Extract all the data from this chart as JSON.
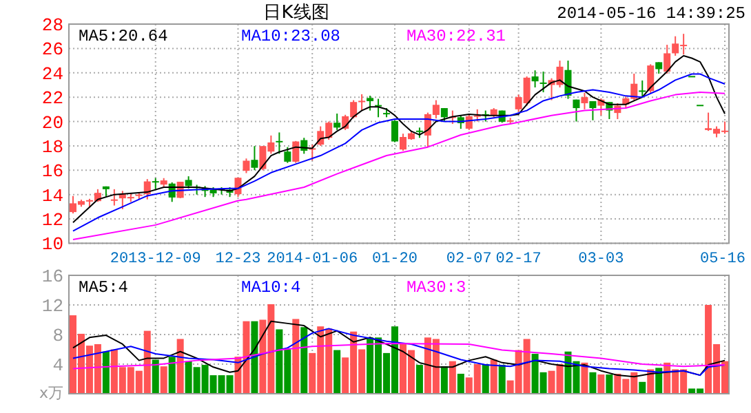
{
  "chart_data": [
    {
      "type": "candlestick",
      "title": "日K线图",
      "subtitle": "2014-05-16 14:39:25",
      "categories": [
        null,
        null,
        null,
        null,
        null,
        null,
        null,
        null,
        null,
        null,
        "2013-12-09",
        null,
        null,
        null,
        null,
        null,
        null,
        null,
        null,
        null,
        "12-23",
        null,
        null,
        null,
        null,
        null,
        null,
        null,
        null,
        "2014-01-06",
        null,
        null,
        null,
        null,
        null,
        null,
        null,
        null,
        null,
        "01-20",
        null,
        null,
        null,
        null,
        null,
        null,
        null,
        null,
        "02-07",
        null,
        null,
        null,
        null,
        null,
        "02-17",
        null,
        null,
        null,
        null,
        null,
        null,
        null,
        null,
        null,
        "03-03",
        null,
        null,
        null,
        null,
        null,
        null,
        null,
        null,
        null,
        null,
        null,
        null,
        null,
        null,
        "05-16"
      ],
      "ohlc": [
        [
          12.56,
          13.88,
          12.45,
          13.28
        ],
        [
          13.16,
          13.58,
          13.0,
          13.46
        ],
        [
          13.46,
          13.65,
          13.0,
          13.54
        ],
        [
          13.46,
          14.44,
          13.4,
          14.14
        ],
        [
          14.67,
          14.67,
          13.84,
          14.44
        ],
        [
          13.5,
          14.44,
          13.1,
          13.6
        ],
        [
          13.69,
          14.3,
          12.8,
          14.03
        ],
        [
          13.7,
          14.1,
          13.4,
          13.8
        ],
        [
          13.9,
          14.2,
          13.6,
          14.0
        ],
        [
          14.03,
          15.27,
          13.6,
          15.08
        ],
        [
          15.1,
          15.35,
          14.44,
          15.0
        ],
        [
          14.82,
          15.35,
          14.6,
          15.16
        ],
        [
          14.9,
          15.0,
          13.4,
          13.76
        ],
        [
          13.73,
          15.05,
          13.7,
          15.05
        ],
        [
          15.2,
          15.5,
          14.5,
          14.7
        ],
        [
          14.65,
          14.8,
          14.0,
          14.55
        ],
        [
          14.5,
          14.7,
          13.8,
          14.3
        ],
        [
          14.4,
          14.6,
          13.8,
          14.1
        ],
        [
          14.5,
          14.6,
          14.0,
          14.4
        ],
        [
          14.4,
          14.6,
          13.8,
          14.15
        ],
        [
          14.03,
          15.4,
          13.8,
          15.38
        ],
        [
          15.95,
          16.96,
          15.76,
          16.78
        ],
        [
          16.85,
          17.98,
          16.0,
          16.2
        ],
        [
          16.1,
          17.98,
          16.0,
          17.98
        ],
        [
          17.53,
          18.85,
          17.35,
          18.28
        ],
        [
          18.4,
          19.1,
          17.35,
          18.3
        ],
        [
          17.53,
          17.9,
          16.6,
          16.7
        ],
        [
          16.7,
          18.4,
          16.6,
          18.36
        ],
        [
          18.47,
          18.66,
          17.35,
          17.6
        ],
        [
          17.7,
          18.1,
          16.8,
          17.8
        ],
        [
          18.1,
          19.6,
          18.0,
          19.22
        ],
        [
          18.66,
          20.0,
          18.5,
          19.9
        ],
        [
          19.9,
          20.65,
          19.3,
          19.5
        ],
        [
          19.41,
          20.55,
          19.3,
          20.43
        ],
        [
          20.35,
          21.75,
          20.25,
          21.6
        ],
        [
          21.6,
          22.24,
          20.9,
          21.7
        ],
        [
          21.93,
          22.12,
          20.9,
          21.67
        ],
        [
          21.35,
          21.86,
          20.35,
          21.3
        ],
        [
          20.7,
          21.1,
          20.35,
          20.6
        ],
        [
          20.05,
          20.1,
          18.3,
          18.36
        ],
        [
          17.7,
          19.0,
          17.6,
          18.73
        ],
        [
          18.55,
          19.2,
          18.5,
          19.03
        ],
        [
          19.25,
          19.5,
          18.66,
          19.2
        ],
        [
          18.85,
          20.73,
          17.9,
          20.6
        ],
        [
          20.54,
          21.75,
          20.25,
          21.37
        ],
        [
          21.1,
          21.1,
          19.98,
          20.35
        ],
        [
          20.3,
          20.9,
          19.8,
          20.4
        ],
        [
          20.35,
          20.5,
          19.4,
          19.86
        ],
        [
          19.41,
          20.55,
          19.3,
          20.43
        ],
        [
          20.4,
          21.0,
          20.0,
          20.5
        ],
        [
          20.6,
          20.9,
          20.0,
          20.5
        ],
        [
          20.54,
          21.1,
          20.35,
          21.0
        ],
        [
          20.9,
          20.9,
          19.9,
          19.98
        ],
        [
          20.0,
          20.3,
          19.8,
          20.1
        ],
        [
          21.0,
          22.2,
          20.8,
          22.0
        ],
        [
          21.5,
          23.7,
          21.3,
          23.6
        ],
        [
          23.7,
          24.2,
          22.8,
          23.3
        ],
        [
          23.2,
          24.1,
          22.4,
          23.1
        ],
        [
          23.0,
          23.55,
          21.75,
          23.4
        ],
        [
          23.0,
          25.0,
          22.8,
          24.5
        ],
        [
          24.23,
          25.0,
          21.86,
          22.12
        ],
        [
          21.8,
          21.8,
          20.0,
          21.1
        ],
        [
          21.5,
          22.35,
          21.0,
          22.0
        ],
        [
          21.67,
          21.67,
          20.1,
          21.1
        ],
        [
          21.3,
          21.9,
          20.5,
          21.8
        ],
        [
          21.6,
          21.6,
          20.2,
          20.9
        ],
        [
          20.7,
          21.5,
          20.2,
          21.3
        ],
        [
          21.4,
          22.05,
          21.1,
          21.9
        ],
        [
          21.86,
          23.93,
          21.75,
          23.1
        ],
        [
          22.55,
          23.37,
          21.97,
          22.5
        ],
        [
          22.5,
          24.7,
          22.35,
          24.6
        ],
        [
          24.87,
          24.87,
          23.93,
          24.3
        ],
        [
          24.1,
          26.3,
          23.93,
          25.6
        ],
        [
          25.6,
          27.0,
          25.4,
          26.4
        ],
        [
          26.2,
          27.2,
          25.5,
          26.3
        ],
        [
          23.74,
          23.74,
          23.74,
          23.74
        ],
        [
          21.37,
          21.37,
          21.37,
          21.37
        ],
        [
          19.3,
          20.73,
          19.23,
          19.45
        ],
        [
          19.0,
          19.6,
          18.7,
          19.4
        ],
        [
          19.2,
          20.0,
          19.0,
          19.25
        ]
      ],
      "series": [
        {
          "type": "line",
          "name": "MA5:20.64",
          "color": "#000000",
          "values": [
            11.7,
            null,
            null,
            13.6,
            null,
            14.0,
            null,
            null,
            null,
            14.2,
            null,
            14.6,
            null,
            null,
            null,
            14.6,
            null,
            null,
            null,
            14.3,
            14.5,
            null,
            15.5,
            null,
            17.2,
            17.5,
            null,
            17.9,
            null,
            17.8,
            18.6,
            18.7,
            19.2,
            19.6,
            20.4,
            20.9,
            21.2,
            21.2,
            21.0,
            20.5,
            19.8,
            19.2,
            18.9,
            19.3,
            20.0,
            20.2,
            20.4,
            null,
            20.6,
            null,
            20.5,
            null,
            20.5,
            20.5,
            20.6,
            null,
            22.2,
            null,
            23.2,
            23.4,
            22.9,
            22.7,
            22.5,
            22.0,
            21.7,
            21.4,
            null,
            21.4,
            21.7,
            22.0,
            22.8,
            null,
            24.1,
            24.9,
            25.4,
            25.2,
            24.9,
            23.7,
            22.0,
            20.64
          ]
        },
        {
          "type": "line",
          "name": "MA10:23.08",
          "color": "#0000ff",
          "values": [
            11.0,
            null,
            null,
            12.1,
            null,
            null,
            13.0,
            null,
            null,
            13.9,
            null,
            null,
            14.3,
            null,
            null,
            14.4,
            null,
            null,
            null,
            14.5,
            14.5,
            null,
            15.1,
            null,
            15.8,
            null,
            null,
            16.5,
            null,
            null,
            17.2,
            null,
            null,
            18.2,
            null,
            19.3,
            null,
            19.9,
            null,
            20.2,
            null,
            20.2,
            null,
            20.2,
            null,
            20.0,
            null,
            20.0,
            null,
            null,
            20.2,
            null,
            20.4,
            20.5,
            null,
            20.9,
            null,
            21.7,
            null,
            22.1,
            null,
            22.4,
            null,
            22.6,
            null,
            22.4,
            null,
            22.1,
            null,
            22.0,
            null,
            22.6,
            null,
            23.4,
            null,
            23.9,
            23.9,
            23.6,
            null,
            23.08
          ]
        },
        {
          "type": "line",
          "name": "MA30:22.31",
          "color": "#ff00ff",
          "values": [
            10.3,
            null,
            null,
            null,
            null,
            null,
            null,
            null,
            null,
            null,
            11.5,
            null,
            null,
            null,
            null,
            null,
            null,
            null,
            null,
            null,
            13.5,
            13.6,
            null,
            null,
            null,
            null,
            null,
            null,
            14.6,
            null,
            null,
            null,
            15.7,
            null,
            null,
            null,
            null,
            null,
            17.2,
            null,
            null,
            null,
            null,
            17.9,
            null,
            null,
            null,
            18.9,
            null,
            null,
            null,
            null,
            19.7,
            19.8,
            null,
            null,
            null,
            null,
            20.5,
            null,
            null,
            null,
            20.9,
            null,
            null,
            null,
            null,
            21.1,
            null,
            null,
            21.7,
            null,
            null,
            22.2,
            null,
            null,
            22.4,
            null,
            null,
            22.31
          ]
        }
      ],
      "ylim": [
        10,
        28
      ],
      "yticks": [
        10,
        12,
        14,
        16,
        18,
        20,
        22,
        24,
        26,
        28
      ],
      "grid": true,
      "legend": "top"
    },
    {
      "type": "bar",
      "ylabel": "x万",
      "categories": [
        null,
        null,
        null,
        null,
        null,
        null,
        null,
        null,
        null,
        null,
        null,
        null,
        null,
        null,
        null,
        null,
        null,
        null,
        null,
        null,
        null,
        null,
        null,
        null,
        null,
        null,
        null,
        null,
        null,
        null,
        null,
        null,
        null,
        null,
        null,
        null,
        null,
        null,
        null,
        null,
        null,
        null,
        null,
        null,
        null,
        null,
        null,
        null,
        null,
        null,
        null,
        null,
        null,
        null,
        null,
        null,
        null,
        null,
        null,
        null,
        null,
        null,
        null,
        null,
        null,
        null,
        null,
        null,
        null,
        null,
        null,
        null,
        null,
        null,
        null,
        null,
        null,
        null,
        null,
        null
      ],
      "values": [
        10.6,
        8.1,
        6.5,
        6.7,
        5.7,
        6.0,
        3.6,
        3.6,
        3.1,
        8.5,
        4.6,
        3.7,
        5.0,
        7.4,
        4.4,
        3.6,
        3.9,
        2.5,
        2.5,
        2.5,
        5.0,
        9.8,
        9.8,
        10.0,
        12.1,
        8.7,
        6.0,
        10.1,
        9.0,
        5.5,
        9.1,
        8.8,
        5.9,
        4.9,
        8.4,
        6.0,
        7.6,
        7.6,
        5.5,
        9.1,
        6.7,
        5.9,
        3.9,
        7.6,
        7.4,
        3.7,
        4.4,
        2.7,
        2.2,
        4.0,
        4.0,
        4.6,
        3.9,
        1.8,
        5.9,
        7.4,
        5.4,
        2.9,
        3.1,
        4.0,
        5.7,
        4.4,
        4.2,
        2.9,
        2.6,
        2.6,
        2.7,
        2.0,
        2.9,
        1.6,
        3.3,
        3.5,
        4.2,
        3.3,
        3.3,
        0.7,
        0.7,
        12.0,
        6.7,
        4.4
      ],
      "colors": [
        "#ff5555",
        "#ff5555",
        "#ff5555",
        "#ff5555",
        "#009900",
        "#ff5555",
        "#ff5555",
        "#ff5555",
        "#ff5555",
        "#ff5555",
        "#009900",
        "#ff5555",
        "#009900",
        "#ff5555",
        "#009900",
        "#009900",
        "#009900",
        "#009900",
        "#009900",
        "#009900",
        "#ff5555",
        "#ff5555",
        "#009900",
        "#ff5555",
        "#ff5555",
        "#009900",
        "#009900",
        "#ff5555",
        "#009900",
        "#ff5555",
        "#ff5555",
        "#ff5555",
        "#009900",
        "#ff5555",
        "#ff5555",
        "#ff5555",
        "#009900",
        "#009900",
        "#009900",
        "#009900",
        "#ff5555",
        "#ff5555",
        "#009900",
        "#ff5555",
        "#ff5555",
        "#009900",
        "#ff5555",
        "#009900",
        "#ff5555",
        "#ff5555",
        "#009900",
        "#ff5555",
        "#009900",
        "#ff5555",
        "#ff5555",
        "#ff5555",
        "#009900",
        "#009900",
        "#ff5555",
        "#ff5555",
        "#009900",
        "#009900",
        "#ff5555",
        "#009900",
        "#ff5555",
        "#009900",
        "#ff5555",
        "#ff5555",
        "#ff5555",
        "#009900",
        "#ff5555",
        "#009900",
        "#ff5555",
        "#ff5555",
        "#ff5555",
        "#009900",
        "#009900",
        "#ff5555",
        "#ff5555",
        "#ff5555"
      ],
      "series": [
        {
          "type": "line",
          "name": "MA5:4",
          "color": "#000000",
          "values": [
            6.2,
            null,
            7.6,
            null,
            7.9,
            null,
            6.7,
            null,
            4.5,
            4.8,
            null,
            4.8,
            null,
            5.7,
            null,
            4.8,
            null,
            3.6,
            null,
            2.9,
            3.1,
            null,
            6.0,
            null,
            9.8,
            null,
            9.5,
            null,
            9.2,
            null,
            7.7,
            null,
            8.5,
            null,
            7.0,
            null,
            7.6,
            null,
            6.7,
            null,
            5.7,
            null,
            4.2,
            null,
            3.6,
            null,
            3.6,
            null,
            4.5,
            null,
            5.0,
            null,
            4.2,
            null,
            3.9,
            null,
            4.5,
            null,
            4.0,
            null,
            3.7,
            null,
            3.9,
            null,
            3.1,
            null,
            2.5,
            null,
            2.3,
            null,
            2.7,
            null,
            2.9,
            null,
            3.1,
            null,
            2.5,
            3.9,
            null,
            4.5
          ]
        },
        {
          "type": "line",
          "name": "MA10:4",
          "color": "#0000ff",
          "values": [
            4.8,
            null,
            null,
            null,
            5.7,
            null,
            null,
            6.4,
            null,
            null,
            5.4,
            null,
            null,
            null,
            4.8,
            null,
            null,
            4.6,
            null,
            null,
            4.2,
            null,
            null,
            5.4,
            null,
            null,
            6.2,
            null,
            null,
            8.2,
            null,
            8.8,
            null,
            null,
            7.9,
            null,
            7.5,
            null,
            7.1,
            null,
            null,
            6.7,
            null,
            null,
            5.7,
            null,
            null,
            4.6,
            null,
            null,
            3.9,
            null,
            null,
            3.7,
            null,
            null,
            4.5,
            null,
            null,
            4.4,
            null,
            null,
            3.7,
            null,
            null,
            3.4,
            null,
            null,
            3.2,
            null,
            null,
            2.9,
            null,
            null,
            3.1,
            null,
            2.5,
            3.6,
            null,
            3.9
          ]
        },
        {
          "type": "line",
          "name": "MA30:3",
          "color": "#ff00ff",
          "values": [
            3.4,
            null,
            null,
            null,
            null,
            3.7,
            null,
            null,
            null,
            null,
            3.9,
            null,
            null,
            null,
            null,
            4.5,
            null,
            null,
            null,
            null,
            4.8,
            null,
            null,
            null,
            null,
            5.9,
            null,
            null,
            null,
            6.4,
            null,
            null,
            null,
            null,
            null,
            null,
            null,
            null,
            6.8,
            null,
            null,
            null,
            null,
            null,
            null,
            null,
            null,
            null,
            6.7,
            null,
            null,
            null,
            5.9,
            null,
            null,
            null,
            null,
            null,
            5.4,
            null,
            null,
            null,
            null,
            null,
            4.8,
            null,
            null,
            null,
            null,
            4.0,
            null,
            null,
            null,
            null,
            3.7,
            null,
            null,
            null,
            null,
            3.9
          ]
        }
      ],
      "ylim": [
        0,
        16
      ],
      "yticks": [
        4,
        8,
        12,
        16
      ],
      "grid": true,
      "legend": "top",
      "tick_labels": "y"
    }
  ]
}
